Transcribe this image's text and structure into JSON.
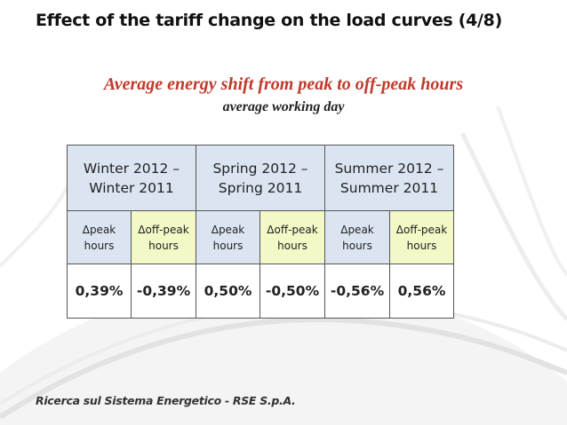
{
  "slide": {
    "title": "Effect of the tariff change on the load curves (4/8)",
    "subtitle": "Average energy shift from peak to off-peak hours",
    "subtitle2": "average working day",
    "footer": "Ricerca sul Sistema Energetico - RSE S.p.A."
  },
  "table": {
    "periods": [
      {
        "label": "Winter 2012 – Winter 2011"
      },
      {
        "label": "Spring 2012 – Spring 2011"
      },
      {
        "label": "Summer 2012 – Summer 2011"
      }
    ],
    "sub_headers": {
      "peak": "Δpeak hours",
      "offpeak": "Δoff-peak hours"
    },
    "values": [
      "0,39%",
      "-0,39%",
      "0,50%",
      "-0,50%",
      "-0,56%",
      "0,56%"
    ]
  },
  "colors": {
    "title": "#111111",
    "subtitle": "#c0392b",
    "period_header_bg": "#dbe5f1",
    "peak_bg": "#dbe5f1",
    "offpeak_bg": "#f3f8c6"
  }
}
